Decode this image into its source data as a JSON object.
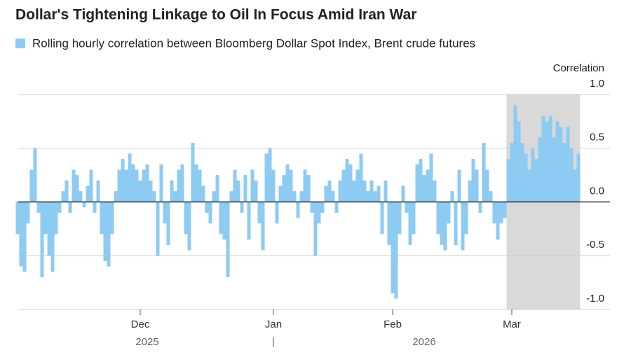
{
  "chart_data": {
    "type": "bar",
    "title": "Dollar's Tightening Linkage to Oil In Focus Amid Iran War",
    "series": [
      {
        "name": "Rolling hourly correlation between Bloomberg Dollar Spot Index, Brent crude futures",
        "color": "#8dcbf2",
        "values": [
          -0.3,
          -0.6,
          -0.65,
          -0.2,
          0.3,
          0.5,
          -0.1,
          -0.7,
          -0.3,
          -0.5,
          -0.65,
          -0.3,
          -0.1,
          0.1,
          0.2,
          -0.1,
          0.3,
          0.25,
          0.1,
          -0.05,
          0.15,
          0.3,
          -0.1,
          0.2,
          -0.3,
          -0.55,
          -0.6,
          -0.3,
          0.1,
          0.3,
          0.4,
          0.3,
          0.45,
          0.35,
          0.3,
          0.2,
          0.3,
          0.35,
          0.2,
          0.1,
          -0.5,
          0.35,
          -0.2,
          -0.4,
          0.2,
          0.1,
          0.3,
          0.35,
          -0.3,
          -0.45,
          0.55,
          0.35,
          0.3,
          0.15,
          -0.1,
          -0.2,
          0.1,
          0.25,
          -0.3,
          -0.35,
          -0.7,
          0.1,
          0.3,
          0.2,
          -0.1,
          0.25,
          -0.35,
          0.3,
          0.2,
          -0.2,
          -0.45,
          0.45,
          0.5,
          0.3,
          -0.2,
          0.15,
          0.25,
          0.35,
          0.3,
          0.1,
          -0.15,
          0.1,
          0.3,
          0.25,
          -0.1,
          -0.5,
          -0.2,
          -0.1,
          0.15,
          0.2,
          0.1,
          -0.1,
          0.2,
          0.3,
          0.4,
          0.35,
          0.2,
          0.3,
          0.45,
          0.2,
          0.1,
          0.2,
          0.1,
          0.15,
          -0.3,
          0.2,
          -0.4,
          -0.85,
          -0.9,
          -0.3,
          0.15,
          -0.1,
          -0.4,
          -0.3,
          0.35,
          0.4,
          0.25,
          0.3,
          0.45,
          0.2,
          -0.3,
          -0.4,
          -0.45,
          -0.2,
          0.1,
          -0.4,
          0.3,
          -0.45,
          -0.3,
          0.2,
          0.4,
          0.3,
          -0.1,
          0.55,
          0.3,
          0.1,
          -0.2,
          -0.35,
          -0.2,
          -0.15,
          0.4,
          0.55,
          0.9,
          0.75,
          0.55,
          0.45,
          0.3,
          0.5,
          0.4,
          0.6,
          0.8,
          0.75,
          0.8,
          0.6,
          0.75,
          0.7,
          0.55,
          0.7,
          0.5,
          0.3,
          0.45
        ]
      }
    ],
    "categories": [
      null,
      null,
      null,
      null,
      null,
      null,
      null,
      null,
      null,
      null,
      null,
      null,
      null,
      null,
      null,
      null,
      null,
      null,
      null,
      null,
      null,
      null,
      null,
      null,
      null,
      null,
      null,
      null,
      null,
      null,
      null,
      null,
      null,
      null,
      null,
      "Dec",
      null,
      null,
      null,
      null,
      null,
      null,
      null,
      null,
      null,
      null,
      null,
      null,
      null,
      null,
      null,
      null,
      null,
      null,
      null,
      null,
      null,
      null,
      null,
      null,
      null,
      null,
      null,
      null,
      null,
      null,
      null,
      null,
      null,
      null,
      null,
      null,
      null,
      "Jan",
      null,
      null,
      null,
      null,
      null,
      null,
      null,
      null,
      null,
      null,
      null,
      null,
      null,
      null,
      null,
      null,
      null,
      null,
      null,
      null,
      null,
      null,
      null,
      null,
      null,
      null,
      null,
      null,
      null,
      null,
      null,
      null,
      null,
      "Feb",
      null,
      null,
      null,
      null,
      null,
      null,
      null,
      null,
      null,
      null,
      null,
      null,
      null,
      null,
      null,
      null,
      null,
      null,
      null,
      null,
      null,
      null,
      null,
      null,
      null,
      null,
      null,
      null,
      null,
      null,
      null,
      null,
      null,
      "Mar",
      null,
      null,
      null,
      null,
      null,
      null,
      null,
      null,
      null,
      null,
      null,
      null,
      null,
      null,
      null,
      null,
      null,
      null,
      null
    ],
    "year_labels": [
      {
        "text": "2025",
        "at_index": 37
      },
      {
        "text": "|",
        "at_index": 73
      },
      {
        "text": "2026",
        "at_index": 116
      }
    ],
    "shaded_categories": [
      140,
      160
    ],
    "shade_color": "#d9d9d9",
    "y_axis_label": "Correlation",
    "ylim": [
      -1,
      1
    ],
    "yticks": [
      {
        "value": 1,
        "label": "1.0"
      },
      0.5,
      {
        "value": 0,
        "label": "0.0"
      },
      -0.5,
      {
        "value": -1,
        "label": "-1.0"
      }
    ],
    "grid": true
  }
}
